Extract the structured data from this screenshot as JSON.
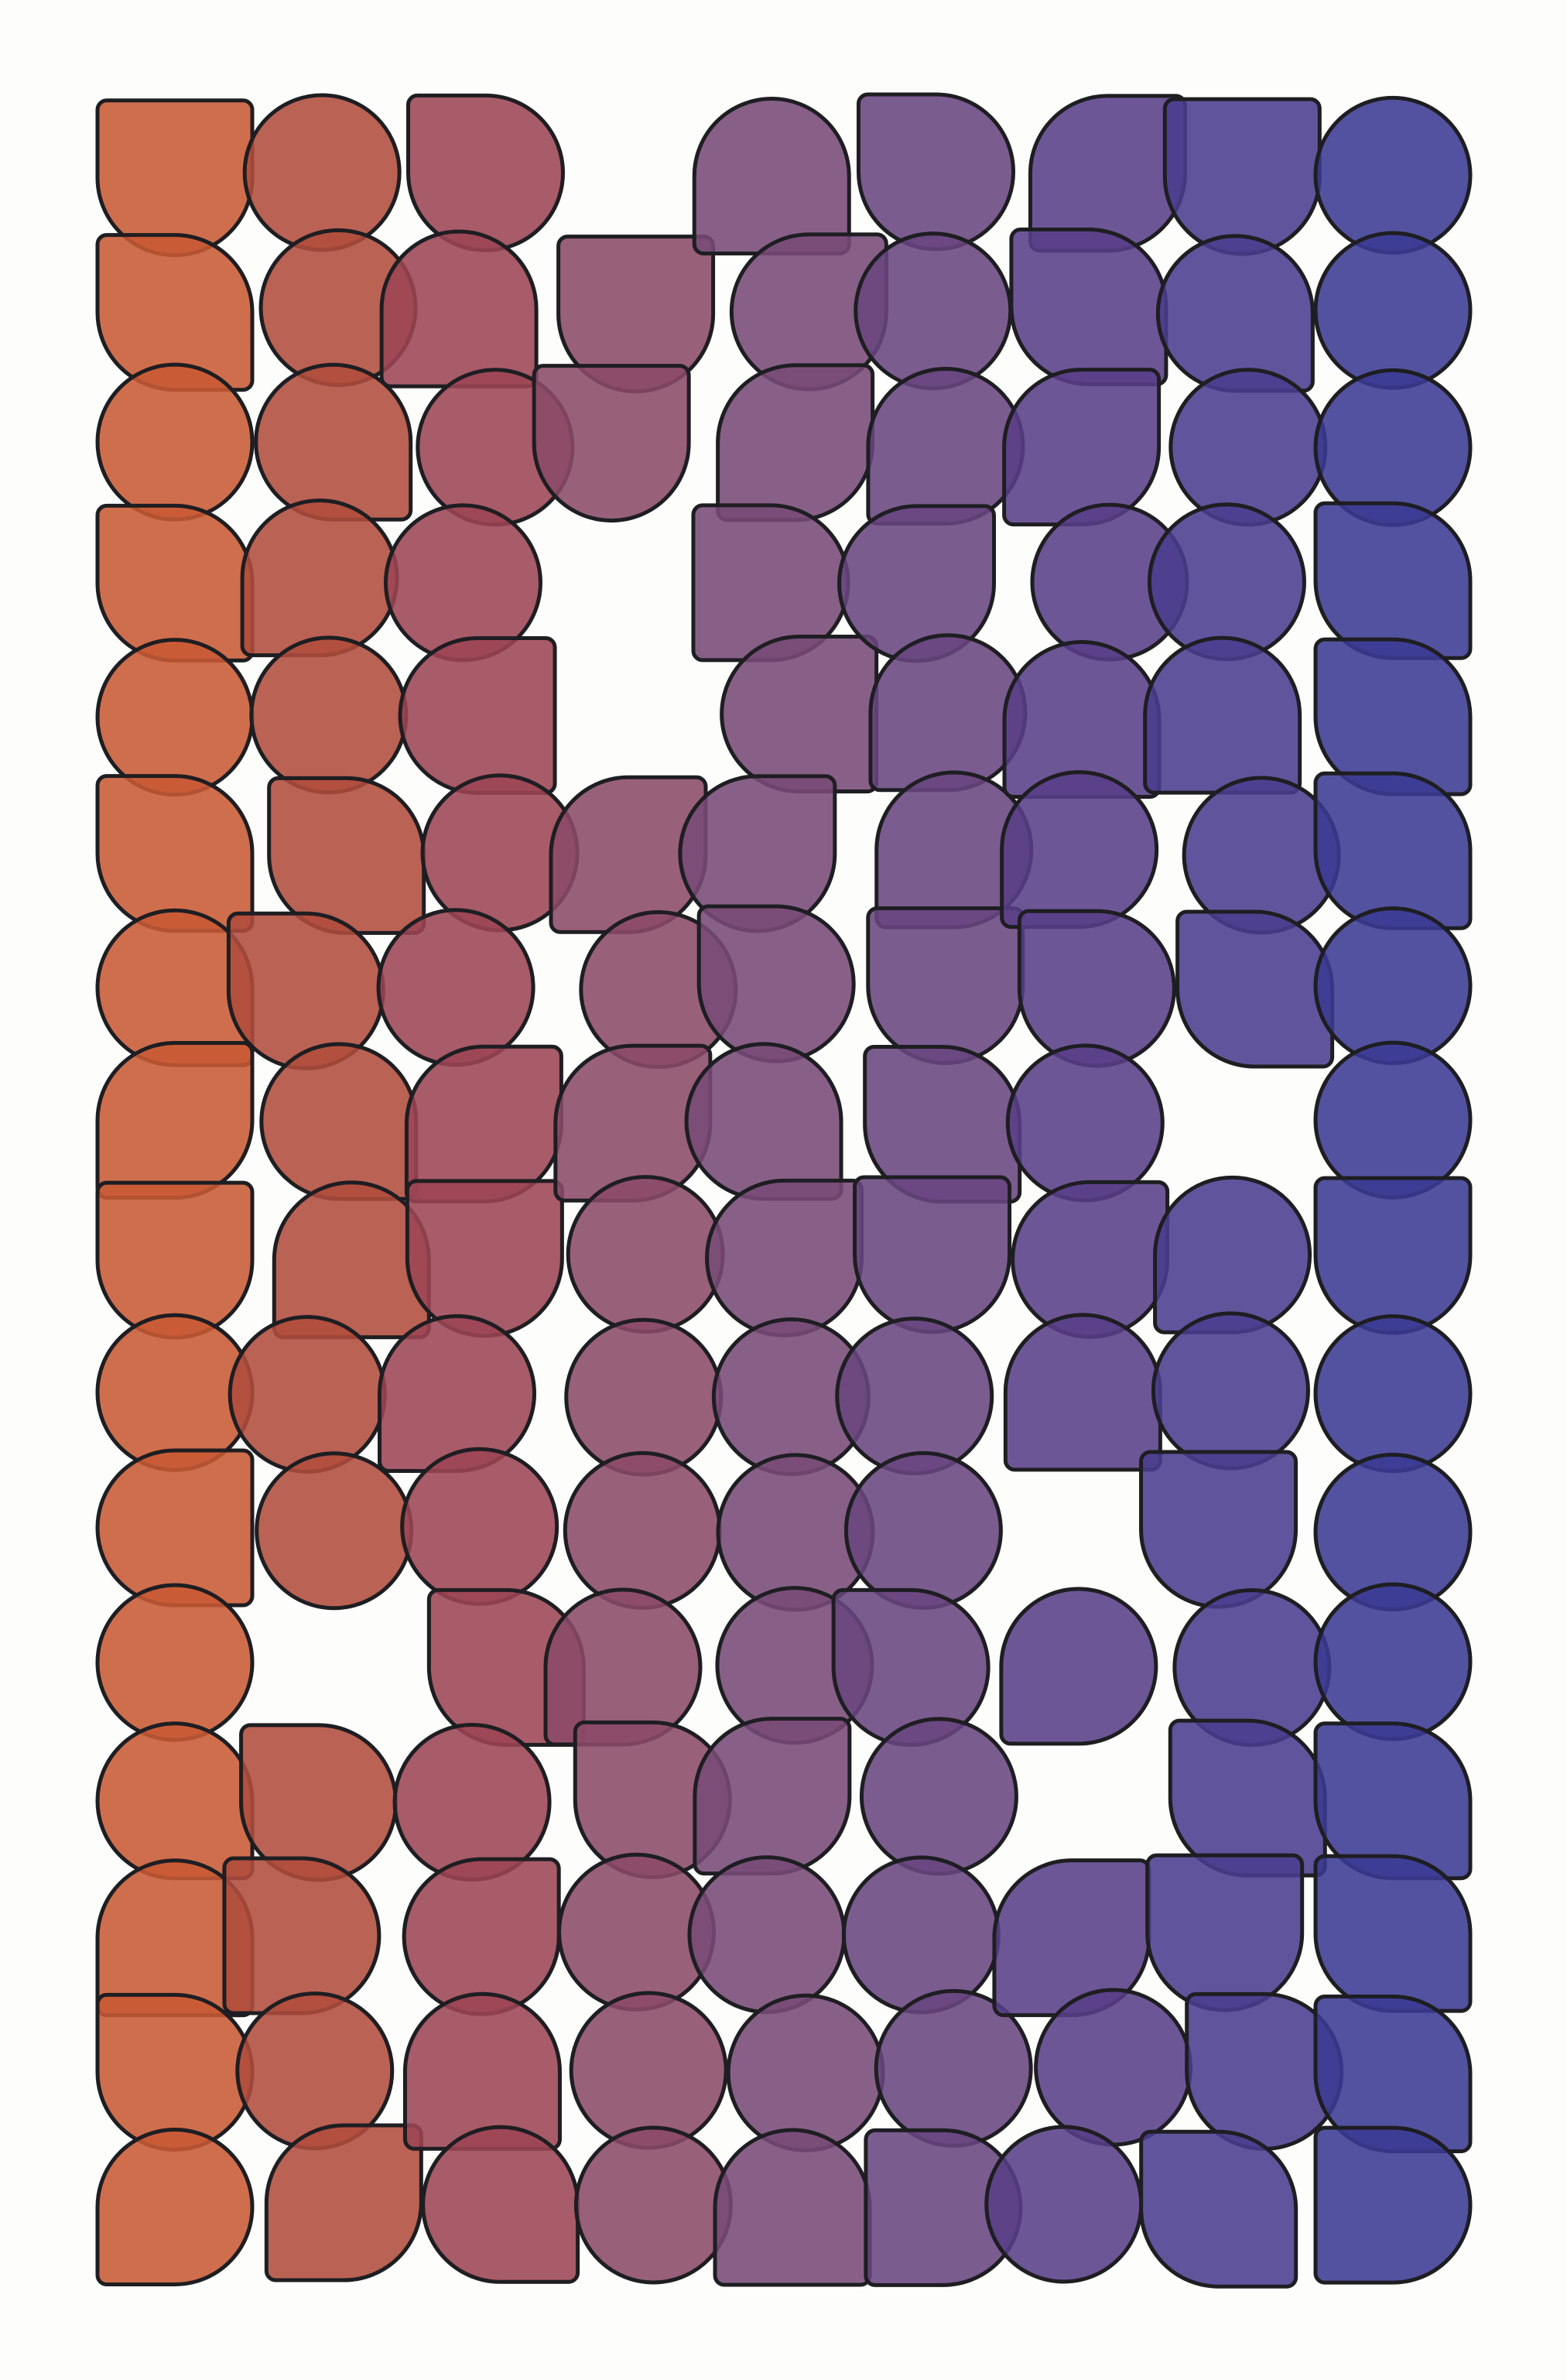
{
  "palette": {
    "background": "#fdfefb",
    "stroke": "#1e1e22",
    "column_colors": [
      "#c85a34",
      "#b04c3c",
      "#9c4453",
      "#8b4a68",
      "#774a76",
      "#694680",
      "#593f88",
      "#4a3d8e",
      "#3b3a93"
    ]
  },
  "grid": {
    "columns": 9,
    "rows": 16,
    "pattern_seed": 4217
  }
}
